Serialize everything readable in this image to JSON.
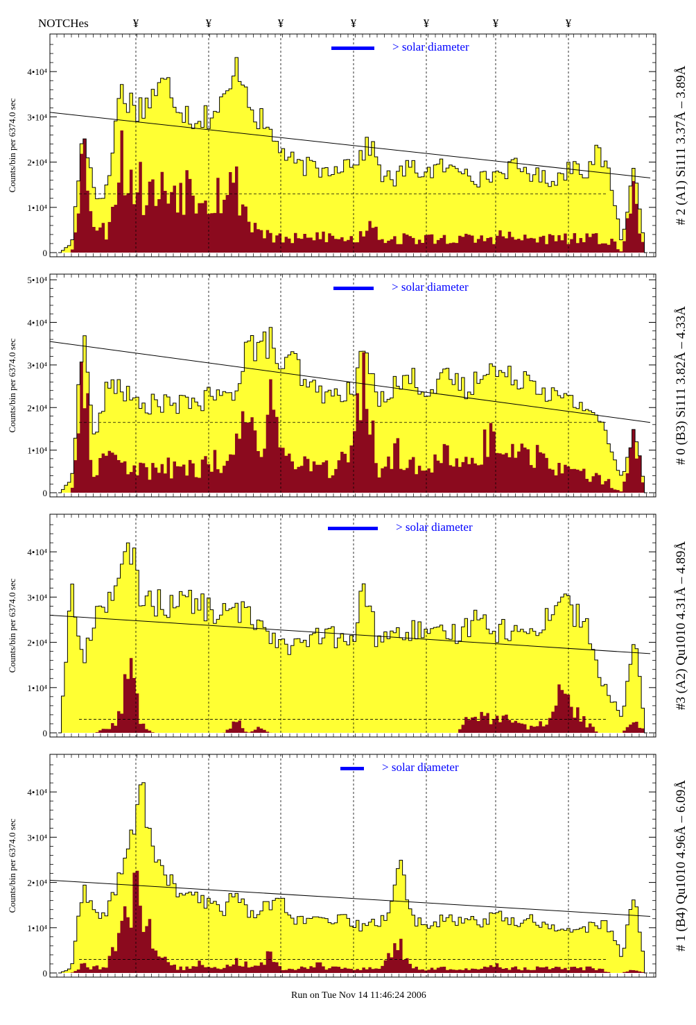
{
  "header": {
    "label": "NOTCHes",
    "notch_symbol": "¥",
    "notch_count": 7
  },
  "footer": {
    "run_text": "Run on Tue Nov 14 11:46:24 2006"
  },
  "colors": {
    "fill_total": "#ffff33",
    "fill_line": "#8b0a1e",
    "outline": "#000000",
    "annotation": "#0000ff",
    "panel_frame": "#000000"
  },
  "chart_data": [
    {
      "type": "area",
      "panel_label": "# 2 (A1) Si111  3.37Å – 3.89Å",
      "ylabel": "Counts/bin per   6374.0 sec",
      "legend": "> solar diameter",
      "ylim": [
        0,
        48000
      ],
      "yticks": [
        {
          "value": 0,
          "label": "0"
        },
        {
          "value": 10000,
          "label": "1•10⁴"
        },
        {
          "value": 20000,
          "label": "2•10⁴"
        },
        {
          "value": 30000,
          "label": "3•10⁴"
        },
        {
          "value": 40000,
          "label": "4•10⁴"
        }
      ],
      "trend_line": [
        31000,
        16500
      ],
      "dashed_level": 13000,
      "profile_total": [
        0,
        2000,
        28000,
        12000,
        14000,
        36000,
        33000,
        32000,
        36000,
        37000,
        33000,
        30000,
        30000,
        31000,
        34000,
        42000,
        33000,
        28000,
        25000,
        21000,
        19000,
        19000,
        18000,
        19000,
        20000,
        21000,
        24000,
        17000,
        16000,
        19000,
        18000,
        18000,
        19000,
        18000,
        19000,
        16000,
        17000,
        18000,
        19000,
        18000,
        17000,
        16000,
        17000,
        20000,
        18000,
        22000,
        17000,
        2000,
        19000,
        0
      ],
      "profile_line": [
        0,
        0,
        24000,
        5000,
        5000,
        22000,
        16000,
        14000,
        13000,
        14000,
        15000,
        15000,
        14000,
        13000,
        15000,
        14000,
        6000,
        5000,
        3000,
        3000,
        3000,
        3000,
        4000,
        3000,
        3000,
        3000,
        8000,
        3000,
        3000,
        3000,
        3000,
        3000,
        3000,
        3000,
        3000,
        3000,
        3000,
        4000,
        3000,
        3000,
        3000,
        3000,
        3000,
        3000,
        3000,
        3000,
        3000,
        0,
        14000,
        0
      ]
    },
    {
      "type": "area",
      "panel_label": "# 0 (B3) Si111  3.82Å – 4.33Å",
      "ylabel": "Counts/bin per   6374.0 sec",
      "legend": "> solar diameter",
      "ylim": [
        0,
        51000
      ],
      "yticks": [
        {
          "value": 0,
          "label": "0"
        },
        {
          "value": 10000,
          "label": "1•10⁴"
        },
        {
          "value": 20000,
          "label": "2•10⁴"
        },
        {
          "value": 30000,
          "label": "3•10⁴"
        },
        {
          "value": 40000,
          "label": "4•10⁴"
        },
        {
          "value": 50000,
          "label": "5•10⁴"
        }
      ],
      "trend_line": [
        35500,
        16500
      ],
      "dashed_level": 16500,
      "profile_total": [
        0,
        3000,
        38000,
        12000,
        24000,
        26000,
        22000,
        20000,
        21000,
        21000,
        20000,
        22000,
        21000,
        23000,
        22000,
        24000,
        36000,
        33000,
        36000,
        28000,
        32000,
        24000,
        25000,
        22000,
        24000,
        23000,
        35000,
        22000,
        24000,
        26000,
        27000,
        25000,
        24000,
        27000,
        26000,
        23000,
        30000,
        29000,
        27000,
        27000,
        28000,
        25000,
        23000,
        22000,
        21000,
        20000,
        18000,
        10000,
        3000,
        16000,
        0
      ],
      "profile_line": [
        0,
        0,
        25000,
        4000,
        10000,
        8000,
        5000,
        6000,
        5000,
        6000,
        5000,
        6000,
        5000,
        8000,
        7000,
        10000,
        22000,
        10000,
        23000,
        8000,
        10000,
        6000,
        7000,
        6000,
        7000,
        8000,
        30000,
        5000,
        8000,
        10000,
        8000,
        7000,
        7000,
        9000,
        8000,
        6000,
        12000,
        12000,
        10000,
        10000,
        11000,
        8000,
        6000,
        5000,
        5000,
        4000,
        4000,
        2000,
        0,
        15000,
        0
      ]
    },
    {
      "type": "area",
      "panel_label": "#3 (A2) Qu1010  4.31Å – 4.89Å",
      "ylabel": "Counts/bin per   6374.0 sec",
      "legend": "> solar diameter",
      "ylim": [
        0,
        48000
      ],
      "yticks": [
        {
          "value": 0,
          "label": "0"
        },
        {
          "value": 10000,
          "label": "1•10⁴"
        },
        {
          "value": 20000,
          "label": "2•10⁴"
        },
        {
          "value": 30000,
          "label": "3•10⁴"
        },
        {
          "value": 40000,
          "label": "4•10⁴"
        }
      ],
      "trend_line": [
        26000,
        17500
      ],
      "dashed_level": 3000,
      "profile_total": [
        0,
        32000,
        15000,
        26000,
        30000,
        32000,
        41000,
        30000,
        29000,
        28000,
        30000,
        29000,
        28000,
        27000,
        26000,
        27000,
        26000,
        25000,
        22000,
        20000,
        19000,
        20000,
        21000,
        22000,
        20000,
        20000,
        33000,
        21000,
        22000,
        21000,
        23000,
        22000,
        21000,
        22000,
        22000,
        24000,
        28000,
        22000,
        23000,
        22000,
        22000,
        24000,
        27000,
        31000,
        26000,
        24000,
        12000,
        8000,
        3000,
        22000,
        0
      ],
      "profile_line": [
        0,
        0,
        0,
        0,
        1000,
        3000,
        15000,
        2000,
        0,
        0,
        0,
        0,
        0,
        0,
        0,
        3000,
        0,
        1000,
        0,
        0,
        0,
        0,
        0,
        0,
        0,
        0,
        0,
        0,
        0,
        0,
        0,
        0,
        0,
        0,
        0,
        5000,
        4000,
        3000,
        4000,
        2000,
        1000,
        2000,
        3000,
        11000,
        5000,
        2000,
        0,
        0,
        0,
        3000,
        0
      ]
    },
    {
      "type": "area",
      "panel_label": "# 1 (B4) Qu1010  4.96Å – 6.09Å",
      "ylabel": "Counts/bin per   6374.0 sec",
      "legend": "> solar diameter",
      "ylim": [
        0,
        48000
      ],
      "yticks": [
        {
          "value": 0,
          "label": "0"
        },
        {
          "value": 10000,
          "label": "1•10⁴"
        },
        {
          "value": 20000,
          "label": "2•10⁴"
        },
        {
          "value": 30000,
          "label": "3•10⁴"
        },
        {
          "value": 40000,
          "label": "4•10⁴"
        }
      ],
      "trend_line": [
        20500,
        12500
      ],
      "dashed_level": 3000,
      "profile_total": [
        0,
        1000,
        19000,
        12000,
        14000,
        20000,
        28000,
        42000,
        26000,
        22000,
        18000,
        17000,
        16000,
        15000,
        14000,
        19000,
        13000,
        14000,
        15000,
        16000,
        12000,
        11000,
        12000,
        11000,
        12000,
        11000,
        10000,
        11000,
        13000,
        25000,
        12000,
        11000,
        11000,
        12000,
        11000,
        12000,
        11000,
        13000,
        12000,
        11000,
        12000,
        11000,
        10000,
        10000,
        9000,
        10000,
        11000,
        10000,
        3000,
        19000,
        0
      ],
      "profile_line": [
        0,
        0,
        2000,
        1000,
        2000,
        6000,
        16000,
        18000,
        6000,
        3000,
        1000,
        1000,
        2000,
        2000,
        1000,
        3000,
        2000,
        2000,
        4000,
        1000,
        1000,
        1000,
        2000,
        1000,
        1000,
        1000,
        1000,
        1000,
        3000,
        6000,
        1000,
        1000,
        1000,
        1000,
        1000,
        1000,
        1000,
        2000,
        1000,
        1000,
        1000,
        1000,
        1000,
        1000,
        1000,
        1000,
        1000,
        0,
        0,
        1000,
        0
      ]
    }
  ]
}
